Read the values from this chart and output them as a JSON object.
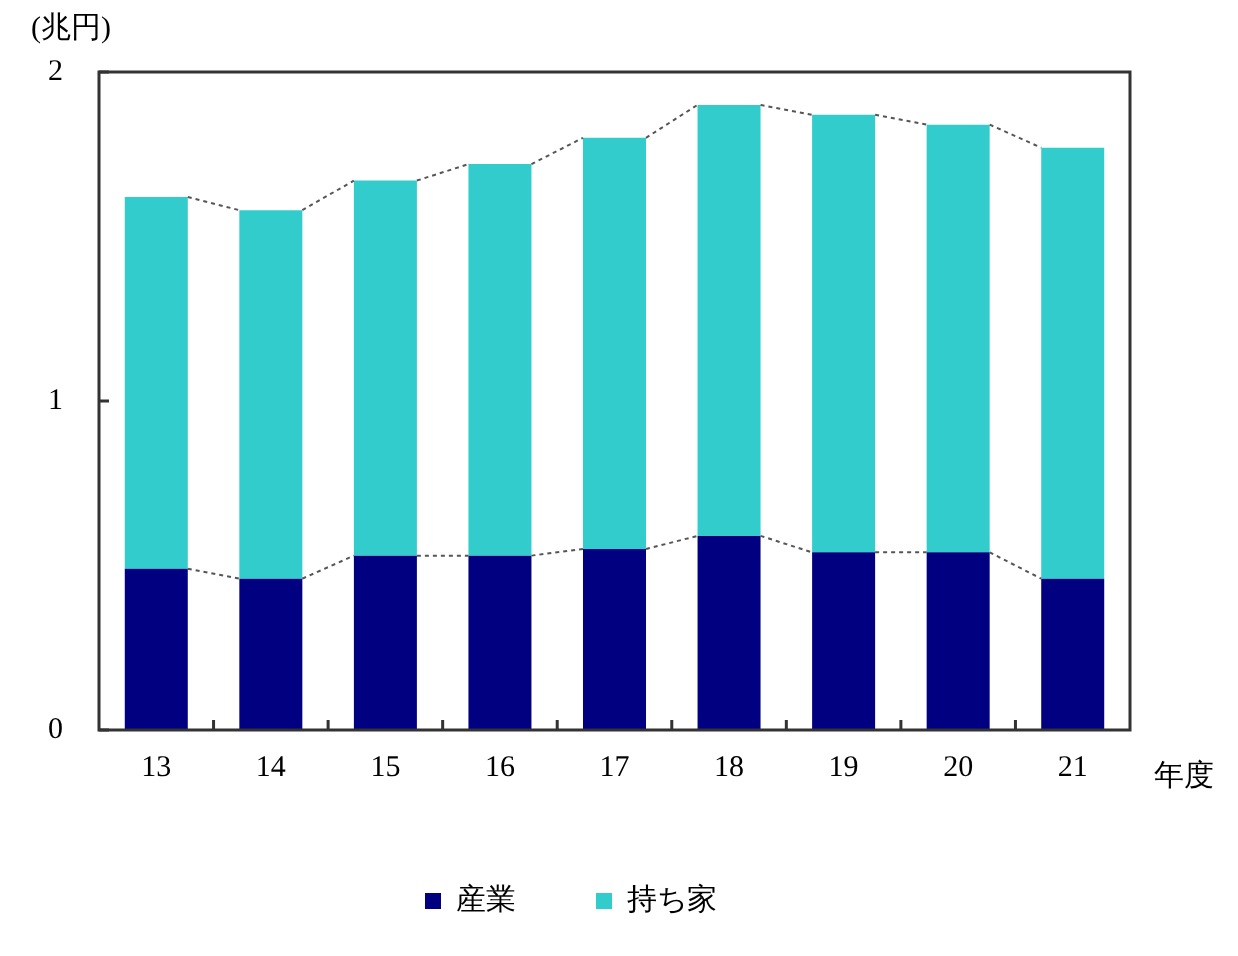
{
  "chart_data": {
    "type": "bar",
    "stacked": true,
    "ylabel": "(兆円)",
    "xlabel": "年度",
    "categories": [
      "13",
      "14",
      "15",
      "16",
      "17",
      "18",
      "19",
      "20",
      "21"
    ],
    "series": [
      {
        "name": "産業",
        "color": "#000080",
        "values": [
          0.49,
          0.46,
          0.53,
          0.53,
          0.55,
          0.59,
          0.54,
          0.54,
          0.46
        ]
      },
      {
        "name": "持ち家",
        "color": "#33cccc",
        "values": [
          1.13,
          1.12,
          1.14,
          1.19,
          1.25,
          1.31,
          1.33,
          1.3,
          1.31
        ]
      }
    ],
    "ylim": [
      0,
      2
    ],
    "yticks": [
      0,
      1,
      2
    ],
    "grid": false,
    "legend": "bottom"
  }
}
